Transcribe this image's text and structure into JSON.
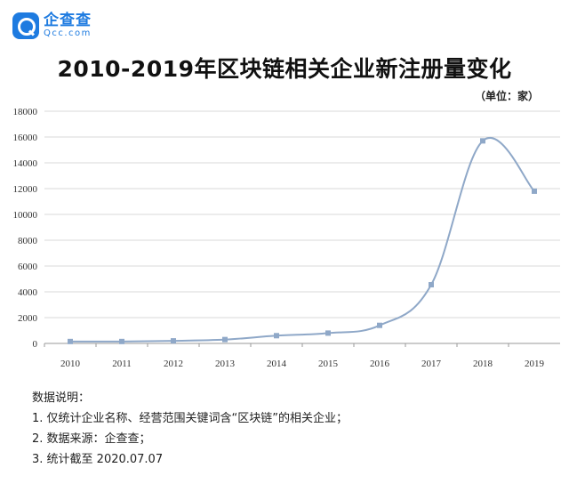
{
  "brand": {
    "name": "企查查",
    "domain": "Qcc.com",
    "icon": "magnifier-q-icon",
    "color": "#1e7be0"
  },
  "chart_data": {
    "type": "line",
    "title": "2010-2019年区块链相关企业新注册量变化",
    "unit_label": "（单位：家）",
    "x": [
      "2010",
      "2011",
      "2012",
      "2013",
      "2014",
      "2015",
      "2016",
      "2017",
      "2018",
      "2019"
    ],
    "series": [
      {
        "values": [
          150,
          150,
          200,
          300,
          600,
          800,
          1400,
          4550,
          15700,
          11800
        ],
        "color": "#8fa8c8"
      }
    ],
    "ylim": [
      0,
      18000
    ],
    "yticks": [
      "0",
      "2000",
      "4000",
      "6000",
      "8000",
      "10000",
      "12000",
      "14000",
      "16000",
      "18000"
    ],
    "grid": true,
    "legend": "none"
  },
  "notes": {
    "heading": "数据说明：",
    "items": [
      "1. 仅统计企业名称、经营范围关键词含“区块链”的相关企业；",
      "2. 数据来源：企查查；",
      "3. 统计截至 2020.07.07"
    ]
  }
}
